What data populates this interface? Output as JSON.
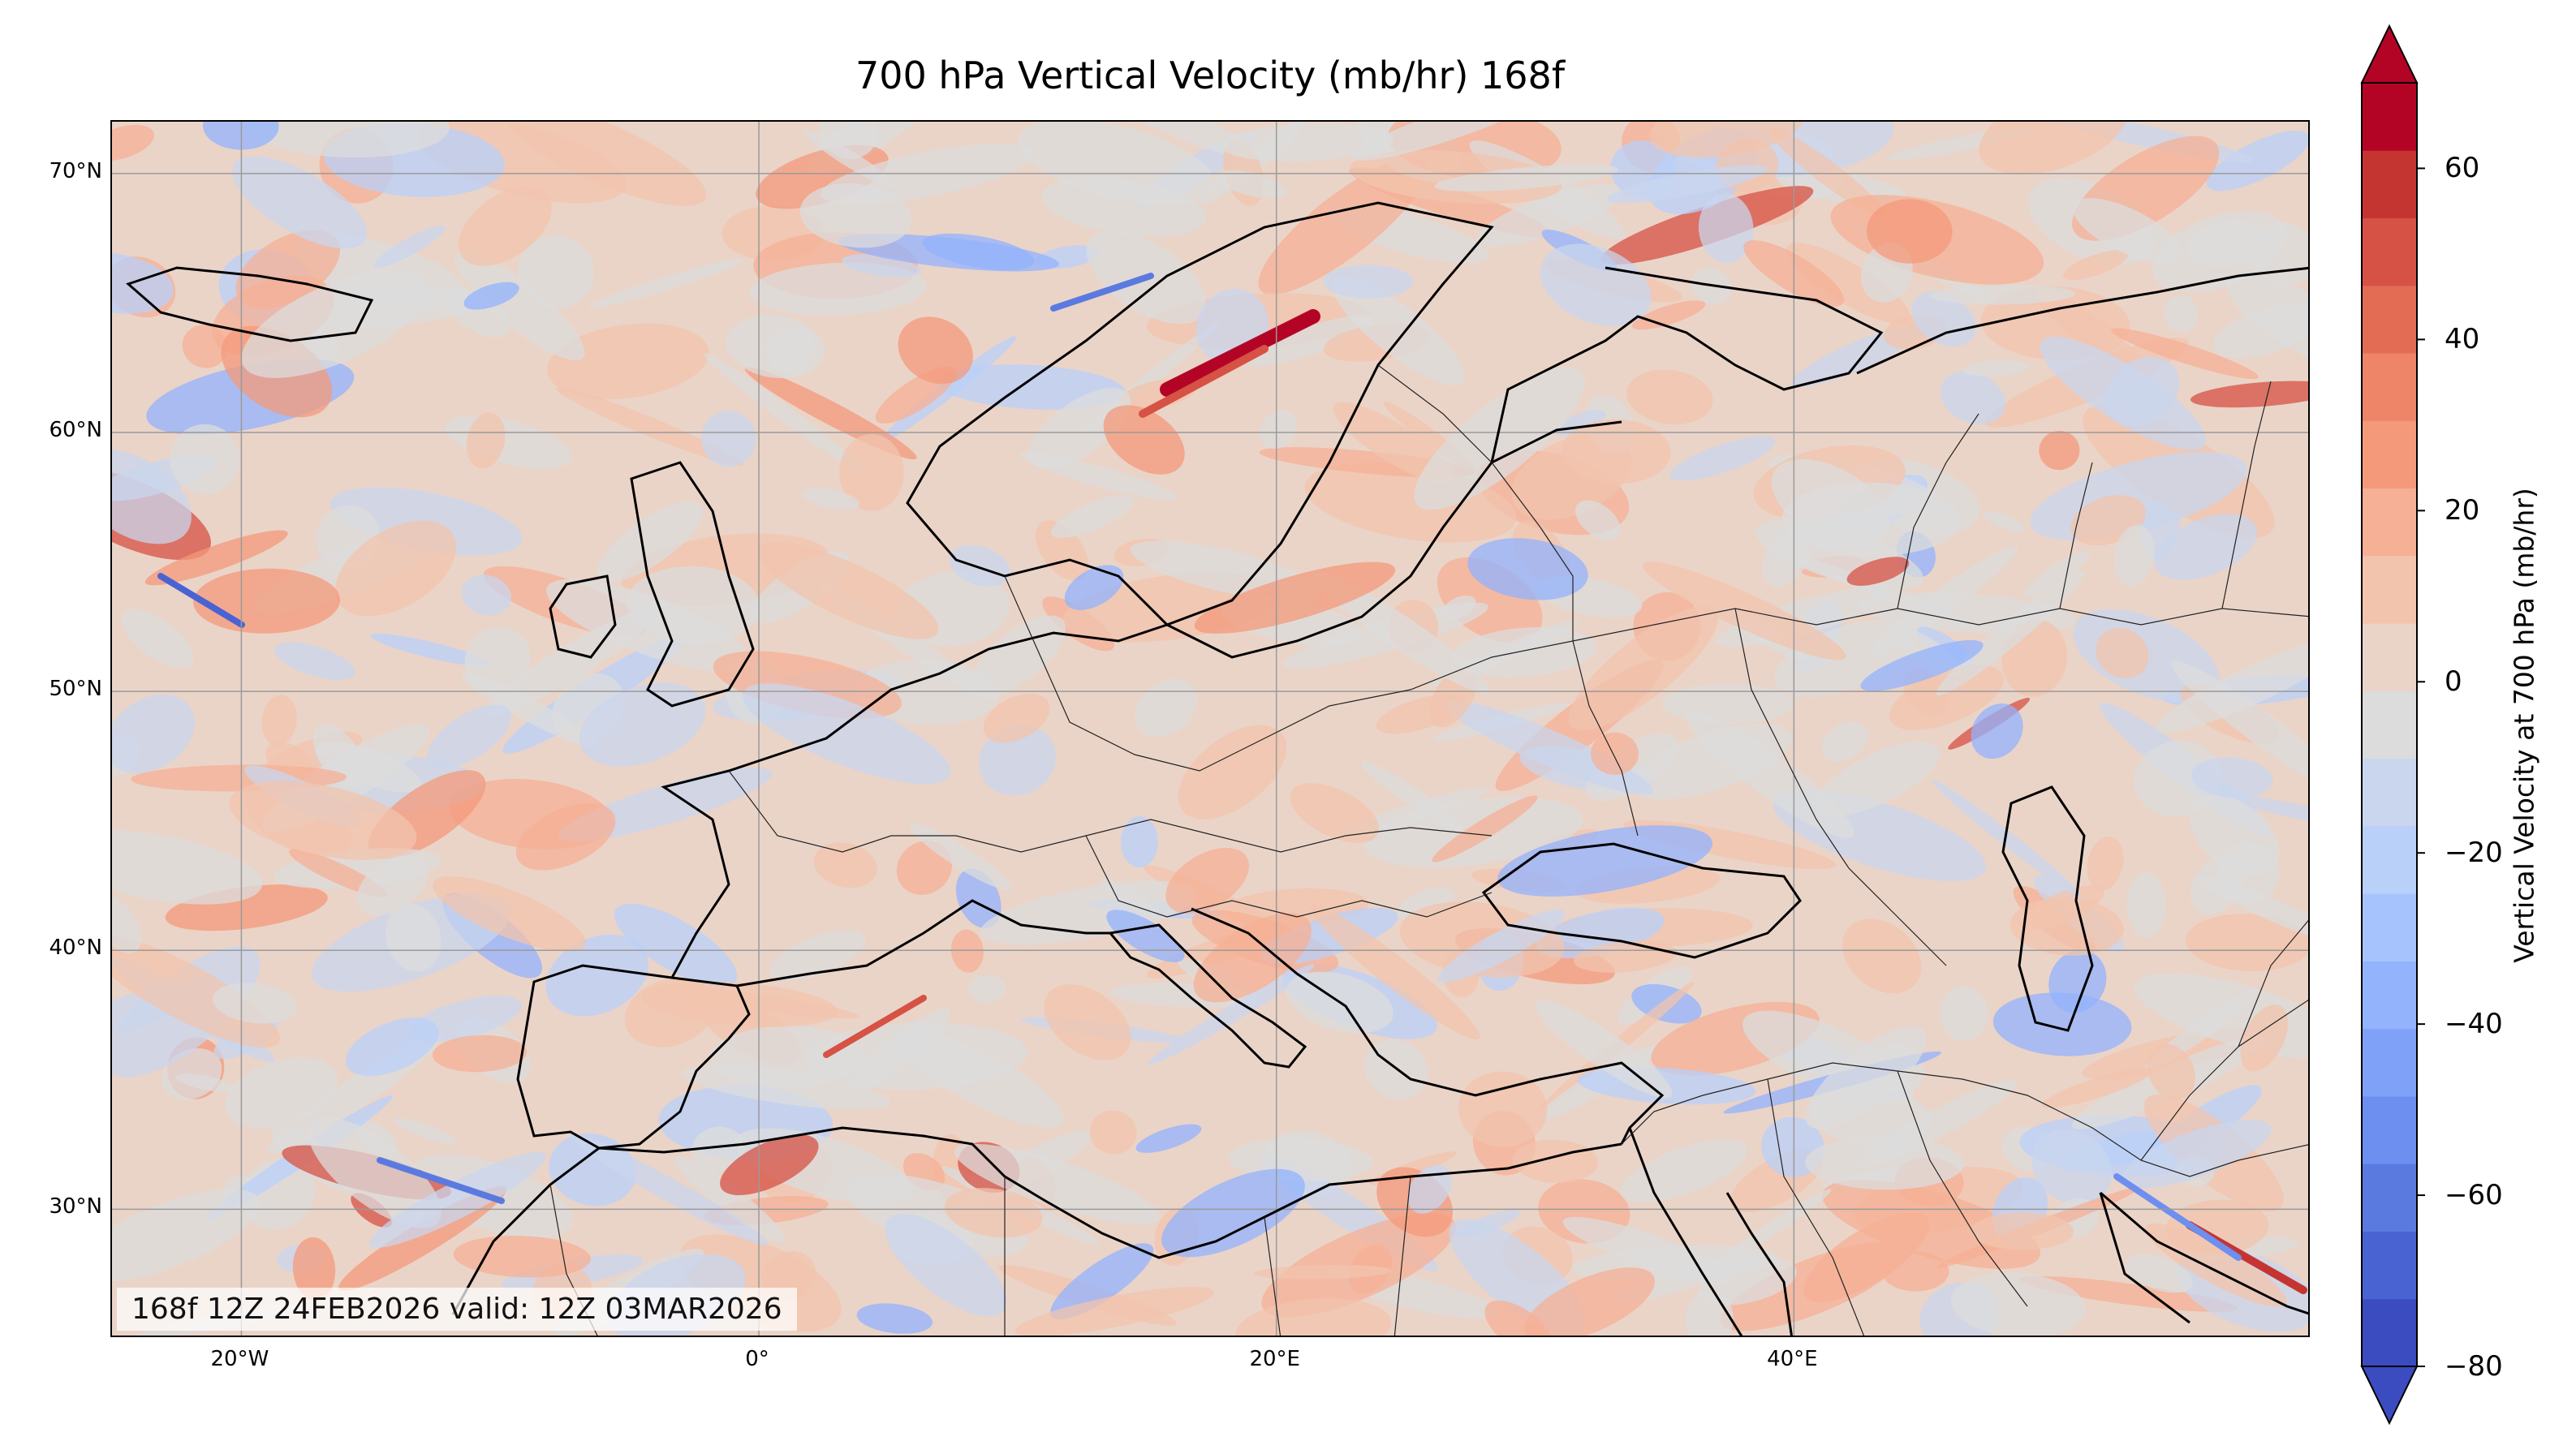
{
  "title": "700 hPa Vertical Velocity (mb/hr) 168f",
  "valid_text": "168f 12Z 24FEB2026 valid: 12Z 03MAR2026",
  "map": {
    "lon_range": [
      -25,
      60
    ],
    "lat_range": [
      25,
      72
    ],
    "lat_ticks": [
      {
        "value": 30,
        "label": "30°N"
      },
      {
        "value": 40,
        "label": "40°N"
      },
      {
        "value": 50,
        "label": "50°N"
      },
      {
        "value": 60,
        "label": "60°N"
      },
      {
        "value": 70,
        "label": "70°N"
      }
    ],
    "lon_ticks": [
      {
        "value": -20,
        "label": "20°W"
      },
      {
        "value": 0,
        "label": "0°"
      },
      {
        "value": 20,
        "label": "20°E"
      },
      {
        "value": 40,
        "label": "40°E"
      }
    ],
    "gridlines": true,
    "background_color": "#dcdcdc",
    "coast_color": "#000000"
  },
  "colorbar": {
    "label": "Vertical Velocity at 700 hPa (mb/hr)",
    "ticks": [
      {
        "value": 60,
        "label": "60"
      },
      {
        "value": 40,
        "label": "40"
      },
      {
        "value": 20,
        "label": "20"
      },
      {
        "value": 0,
        "label": "0"
      },
      {
        "value": -20,
        "label": "−20"
      },
      {
        "value": -40,
        "label": "−40"
      },
      {
        "value": -60,
        "label": "−60"
      },
      {
        "value": -80,
        "label": "−80"
      }
    ],
    "range": [
      -80,
      70
    ],
    "extend": "both",
    "colors": [
      "#3b4cc0",
      "#4a63d3",
      "#5b7ae0",
      "#6c8ff0",
      "#7fa2f8",
      "#93b3fd",
      "#a7c3fe",
      "#b9d0f9",
      "#cad6ee",
      "#dcdcdc",
      "#ead4c8",
      "#f2c4ae",
      "#f5b095",
      "#f49a7b",
      "#ee8468",
      "#e36c55",
      "#d65244",
      "#c43532",
      "#b40426"
    ],
    "over_color": "#b40426",
    "under_color": "#3b4cc0"
  }
}
